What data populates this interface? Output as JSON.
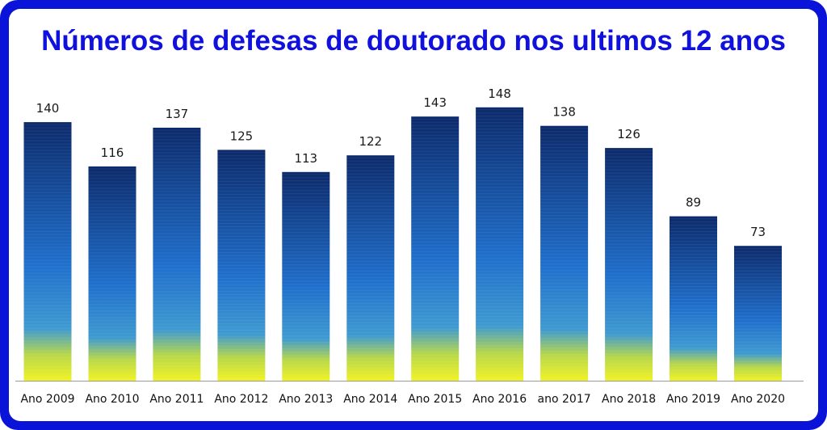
{
  "colors": {
    "frame": "#0a14d8",
    "title": "#1111dd",
    "bar_top": "#0c2a6b",
    "bar_mid": "#1f6fcc",
    "bar_bottom": "#f1f224",
    "baseline": "#9a9a9a"
  },
  "chart_data": {
    "type": "bar",
    "title": "Números de defesas de doutorado nos ultimos 12 anos",
    "xlabel": "",
    "ylabel": "",
    "categories": [
      "Ano 2009",
      "Ano 2010",
      "Ano 2011",
      "Ano 2012",
      "Ano 2013",
      "Ano 2014",
      "Ano 2015",
      "Ano 2016",
      "ano 2017",
      "Ano 2018",
      "Ano 2019",
      "Ano 2020"
    ],
    "values": [
      140,
      116,
      137,
      125,
      113,
      122,
      143,
      148,
      138,
      126,
      89,
      73
    ],
    "grid": false,
    "legend": "none"
  }
}
